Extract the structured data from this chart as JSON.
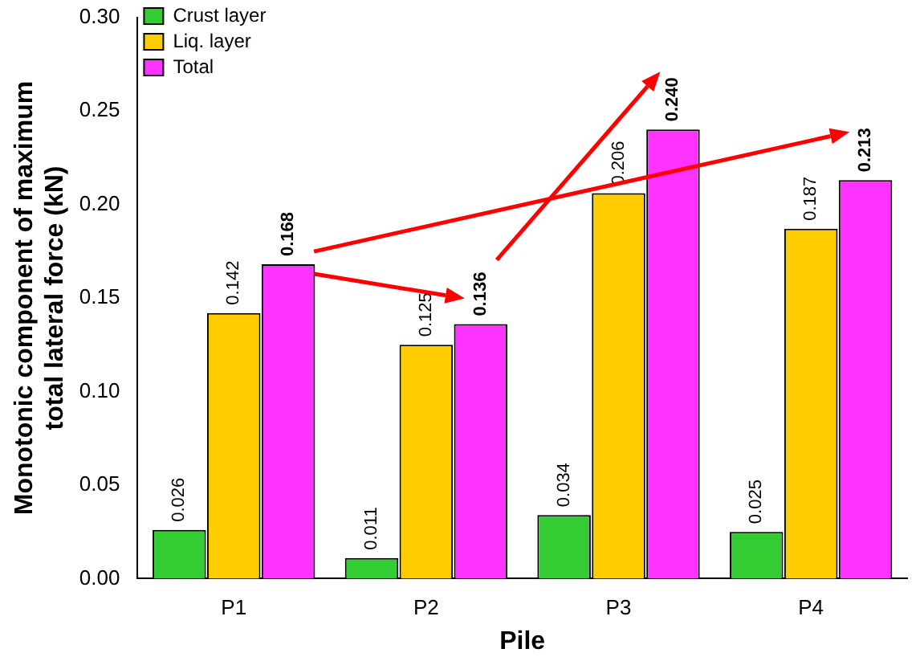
{
  "chart_data": {
    "type": "bar",
    "xlabel": "Pile",
    "ylabel": "Monotonic component of maximum total lateral force (kN)",
    "categories": [
      "P1",
      "P2",
      "P3",
      "P4"
    ],
    "series": [
      {
        "name": "Crust layer",
        "color": "#33cc33",
        "values": [
          0.026,
          0.011,
          0.034,
          0.025
        ],
        "value_labels": [
          "0.026",
          "0.011",
          "0.034",
          "0.025"
        ]
      },
      {
        "name": "Liq. layer",
        "color": "#ffcc00",
        "values": [
          0.142,
          0.125,
          0.206,
          0.187
        ],
        "value_labels": [
          "0.142",
          "0.125",
          "0.206",
          "0.187"
        ]
      },
      {
        "name": "Total",
        "color": "#ff33ff",
        "values": [
          0.168,
          0.136,
          0.24,
          0.213
        ],
        "value_labels": [
          "0.168",
          "0.136",
          "0.240",
          "0.213"
        ]
      }
    ],
    "ylim": [
      0,
      0.3
    ],
    "yticks": [
      {
        "value": 0,
        "label": "0.00"
      },
      {
        "value": 0.05,
        "label": "0.05"
      },
      {
        "value": 0.1,
        "label": "0.10"
      },
      {
        "value": 0.15,
        "label": "0.15"
      },
      {
        "value": 0.2,
        "label": "0.20"
      },
      {
        "value": 0.25,
        "label": "0.25"
      },
      {
        "value": 0.3,
        "label": "0.30"
      }
    ],
    "grid": false,
    "legend": "top left"
  }
}
